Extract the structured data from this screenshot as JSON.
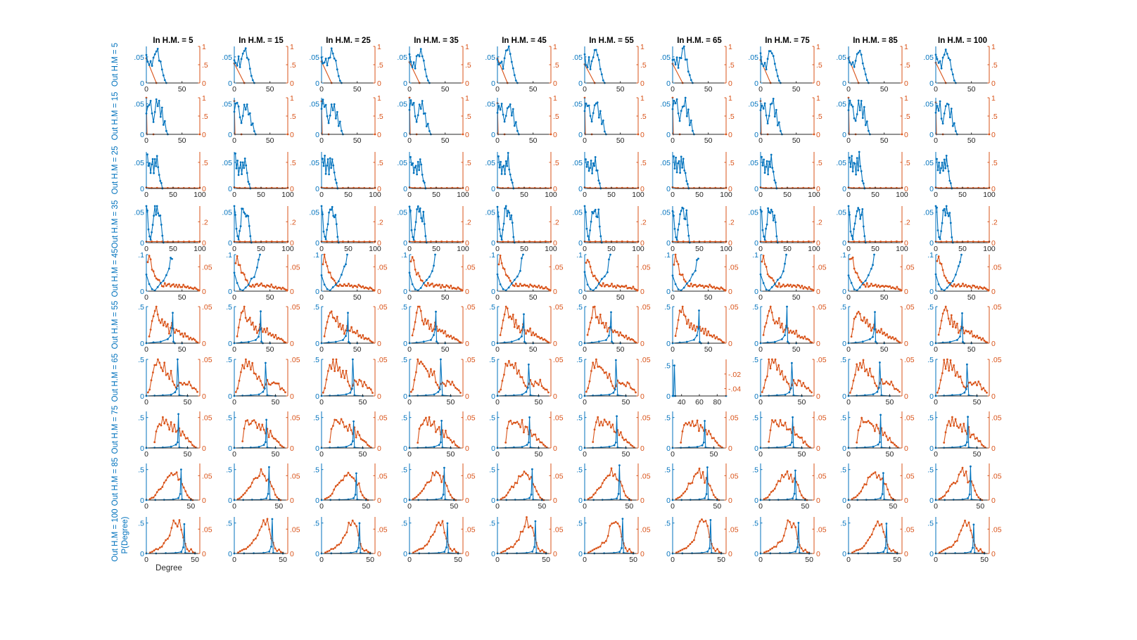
{
  "figure": {
    "col_titles": [
      "In H.M. = 5",
      "In H.M. = 15",
      "In H.M. = 25",
      "In H.M. = 35",
      "In H.M. = 45",
      "In H.M. = 55",
      "In H.M. = 65",
      "In H.M. = 75",
      "In H.M. = 85",
      "In H.M. = 100"
    ],
    "row_labels": [
      "Out H.M = 5",
      "Out H.M = 15",
      "Out H.M = 25",
      "Out H.M = 35",
      "Out H.M = 45",
      "Out H.M = 55",
      "Out H.M = 65",
      "Out H.M = 75",
      "Out H.M = 85",
      "Out H.M = 100"
    ],
    "ylabel": "P(Degree)",
    "xlabel": "Degree",
    "colors": {
      "left_series": "#0072bd",
      "right_series": "#d95319",
      "axis": "#262626"
    }
  },
  "chart_data": {
    "type": "line",
    "layout_note": "10 x 10 grid of small multiples with dual y-axes; left axis (blue) and right axis (orange)",
    "rows": [
      {
        "label": "Out H.M = 5",
        "xticks": [
          0,
          50
        ],
        "xlim": [
          0,
          75
        ],
        "left_yticks": [
          0,
          0.05
        ],
        "left_ylim": [
          0,
          0.07
        ],
        "right_yticks": [
          0,
          0.5,
          1
        ],
        "right_ylim": [
          0,
          1
        ],
        "left_x": [
          0,
          2,
          4,
          6,
          8,
          10,
          12,
          14,
          16,
          18,
          20,
          22,
          24,
          26,
          28
        ],
        "left_y": [
          0.05,
          0.04,
          0.035,
          0.045,
          0.03,
          0.045,
          0.055,
          0.06,
          0.065,
          0.05,
          0.04,
          0.025,
          0.015,
          0.005,
          0
        ],
        "right_x": [
          0,
          14
        ],
        "right_y": [
          0.6,
          0
        ]
      },
      {
        "label": "Out H.M = 15",
        "xticks": [
          0,
          50
        ],
        "xlim": [
          0,
          75
        ],
        "left_yticks": [
          0,
          0.05
        ],
        "left_ylim": [
          0,
          0.06
        ],
        "right_yticks": [
          0,
          0.5,
          1
        ],
        "right_ylim": [
          0,
          1
        ],
        "left_x": [
          0,
          2,
          4,
          6,
          8,
          10,
          12,
          14,
          16,
          18,
          20,
          22,
          24,
          26,
          28,
          30
        ],
        "left_y": [
          0.04,
          0.05,
          0.045,
          0.05,
          0.03,
          0.02,
          0.035,
          0.05,
          0.045,
          0.055,
          0.03,
          0.04,
          0.015,
          0.02,
          0.005,
          0
        ],
        "right_x": [
          0,
          1,
          10,
          75
        ],
        "right_y": [
          1,
          0,
          0,
          0
        ]
      },
      {
        "label": "Out H.M = 25",
        "xticks": [
          0,
          50,
          100
        ],
        "xlim": [
          0,
          100
        ],
        "left_yticks": [
          0,
          0.05
        ],
        "left_ylim": [
          0,
          0.07
        ],
        "right_yticks": [
          0,
          0.5
        ],
        "right_ylim": [
          0,
          0.7
        ],
        "left_x": [
          2,
          4,
          6,
          8,
          10,
          12,
          14,
          16,
          18,
          20,
          22,
          24,
          26,
          28,
          30
        ],
        "left_y": [
          0.06,
          0.04,
          0.055,
          0.03,
          0.045,
          0.05,
          0.03,
          0.055,
          0.04,
          0.065,
          0.04,
          0.03,
          0.015,
          0.01,
          0
        ],
        "right_x": [
          0,
          10,
          20,
          30,
          40,
          50,
          60,
          70,
          80,
          90,
          100
        ],
        "right_y": [
          0.02,
          0.01,
          0.01,
          0.01,
          0.01,
          0.01,
          0.01,
          0.01,
          0.01,
          0.01,
          0.01
        ]
      },
      {
        "label": "Out H.M = 35",
        "xticks": [
          0,
          50,
          100
        ],
        "xlim": [
          0,
          100
        ],
        "left_yticks": [
          0,
          0.05
        ],
        "left_ylim": [
          0,
          0.06
        ],
        "right_yticks": [
          0,
          0.2
        ],
        "right_ylim": [
          0,
          0.35
        ],
        "left_x": [
          0,
          2,
          4,
          6,
          8,
          10,
          12,
          14,
          16,
          18,
          20,
          22,
          24,
          26,
          28,
          30,
          32
        ],
        "left_y": [
          0.06,
          0.05,
          0.02,
          0.01,
          0.005,
          0.02,
          0.03,
          0.05,
          0.055,
          0.05,
          0.055,
          0.045,
          0.04,
          0.05,
          0.03,
          0.01,
          0
        ],
        "right_x": [
          0,
          10,
          20,
          30,
          40,
          50,
          60,
          70,
          80,
          90,
          100
        ],
        "right_y": [
          0.01,
          0.01,
          0.01,
          0.01,
          0.01,
          0.01,
          0.01,
          0.01,
          0.01,
          0.01,
          0.01
        ]
      },
      {
        "label": "Out H.M = 45",
        "xticks": [
          0,
          50
        ],
        "xlim": [
          0,
          75
        ],
        "left_yticks": [
          0,
          0.1
        ],
        "left_ylim": [
          0,
          0.1
        ],
        "right_yticks": [
          0,
          0.05
        ],
        "right_ylim": [
          0,
          0.075
        ],
        "left_x": [
          0,
          4,
          8,
          12,
          16,
          20,
          24,
          28,
          32,
          34,
          36
        ],
        "left_y": [
          0.05,
          0.02,
          0.005,
          0.002,
          0.01,
          0.02,
          0.03,
          0.04,
          0.06,
          0.08,
          0.1
        ],
        "right_x": [
          2,
          4,
          6,
          8,
          10,
          12,
          14,
          16,
          18,
          20,
          22,
          24,
          26,
          28,
          30,
          32,
          34,
          36,
          38,
          40,
          42,
          44,
          46,
          48,
          50,
          52,
          54,
          56,
          58,
          60,
          62,
          64,
          66,
          68,
          70,
          72,
          74
        ],
        "right_y": [
          0.06,
          0.07,
          0.06,
          0.05,
          0.04,
          0.035,
          0.03,
          0.025,
          0.02,
          0.015,
          0.012,
          0.01,
          0.015,
          0.01,
          0.012,
          0.015,
          0.01,
          0.012,
          0.015,
          0.01,
          0.012,
          0.008,
          0.012,
          0.01,
          0.008,
          0.012,
          0.01,
          0.008,
          0.01,
          0.006,
          0.008,
          0.006,
          0.005,
          0.008,
          0.005,
          0.003,
          0.002
        ]
      },
      {
        "label": "Out H.M = 55",
        "xticks": [
          0,
          50
        ],
        "xlim": [
          0,
          75
        ],
        "left_yticks": [
          0,
          0.5
        ],
        "left_ylim": [
          0,
          0.5
        ],
        "right_yticks": [
          0,
          0.05
        ],
        "right_ylim": [
          0,
          0.05
        ],
        "left_x": [
          0,
          10,
          20,
          30,
          34,
          36,
          37,
          38,
          40,
          50
        ],
        "left_y": [
          0,
          0.01,
          0.02,
          0.05,
          0.1,
          0.2,
          0.45,
          0.02,
          0,
          0
        ],
        "right_x": [
          4,
          6,
          8,
          10,
          12,
          14,
          16,
          18,
          20,
          22,
          24,
          26,
          28,
          30,
          32,
          34,
          36,
          38,
          40,
          42,
          44,
          46,
          48,
          50,
          52,
          54,
          56,
          58,
          60,
          62,
          64,
          66,
          68,
          70,
          72
        ],
        "right_y": [
          0.01,
          0.02,
          0.03,
          0.04,
          0.045,
          0.05,
          0.04,
          0.035,
          0.03,
          0.035,
          0.025,
          0.03,
          0.02,
          0.025,
          0.015,
          0.02,
          0.025,
          0.02,
          0.015,
          0.02,
          0.015,
          0.018,
          0.012,
          0.015,
          0.01,
          0.012,
          0.008,
          0.01,
          0.006,
          0.008,
          0.005,
          0.006,
          0.004,
          0.002,
          0.001
        ]
      },
      {
        "label": "Out H.M = 65",
        "xticks": [
          0,
          50
        ],
        "xlim": [
          0,
          65
        ],
        "left_yticks": [
          0,
          0.5
        ],
        "left_ylim": [
          0,
          0.5
        ],
        "right_yticks": [
          0,
          0.05
        ],
        "right_ylim": [
          0,
          0.05
        ],
        "left_x": [
          0,
          10,
          20,
          30,
          35,
          37,
          38,
          40,
          50
        ],
        "left_y": [
          0,
          0.005,
          0.01,
          0.02,
          0.05,
          0.1,
          0.5,
          0.01,
          0
        ],
        "right_x": [
          2,
          4,
          6,
          8,
          10,
          12,
          14,
          16,
          18,
          20,
          22,
          24,
          26,
          28,
          30,
          32,
          34,
          36,
          38,
          40,
          42,
          44,
          46,
          48,
          50,
          52,
          54,
          56,
          58,
          60,
          62
        ],
        "right_y": [
          0.005,
          0.01,
          0.02,
          0.03,
          0.045,
          0.04,
          0.05,
          0.04,
          0.045,
          0.035,
          0.04,
          0.03,
          0.035,
          0.025,
          0.03,
          0.02,
          0.015,
          0.01,
          0.015,
          0.02,
          0.018,
          0.015,
          0.02,
          0.018,
          0.015,
          0.02,
          0.015,
          0.01,
          0.01,
          0.008,
          0.005
        ]
      },
      {
        "label": "Out H.M = 75",
        "xticks": [
          0,
          50
        ],
        "xlim": [
          0,
          65
        ],
        "left_yticks": [
          0,
          0.5
        ],
        "left_ylim": [
          0,
          0.6
        ],
        "right_yticks": [
          0,
          0.05
        ],
        "right_ylim": [
          0,
          0.06
        ],
        "left_x": [
          0,
          10,
          20,
          30,
          36,
          38,
          39,
          40,
          50
        ],
        "left_y": [
          0,
          0.005,
          0.01,
          0.02,
          0.05,
          0.1,
          0.5,
          0.01,
          0
        ],
        "right_x": [
          10,
          12,
          14,
          16,
          18,
          20,
          22,
          24,
          26,
          28,
          30,
          32,
          34,
          36,
          38,
          40,
          42,
          44,
          46,
          48,
          50,
          52,
          54,
          56,
          58,
          60
        ],
        "right_y": [
          0.01,
          0.03,
          0.04,
          0.045,
          0.04,
          0.045,
          0.04,
          0.045,
          0.04,
          0.035,
          0.04,
          0.03,
          0.035,
          0.03,
          0.025,
          0.03,
          0.02,
          0.025,
          0.02,
          0.015,
          0.015,
          0.01,
          0.01,
          0.005,
          0.003,
          0.001
        ]
      },
      {
        "label": "Out H.M = 85",
        "xticks": [
          0,
          50
        ],
        "xlim": [
          0,
          60
        ],
        "left_yticks": [
          0,
          0.5
        ],
        "left_ylim": [
          0,
          0.6
        ],
        "right_yticks": [
          0,
          0.05
        ],
        "right_ylim": [
          0,
          0.075
        ],
        "left_x": [
          0,
          10,
          20,
          30,
          36,
          38,
          39,
          40,
          50
        ],
        "left_y": [
          0,
          0.002,
          0.005,
          0.01,
          0.03,
          0.1,
          0.5,
          0.01,
          0
        ],
        "right_x": [
          4,
          6,
          8,
          10,
          12,
          14,
          16,
          18,
          20,
          22,
          24,
          26,
          28,
          30,
          32,
          34,
          36,
          38,
          40,
          42,
          44,
          46,
          48,
          50,
          52
        ],
        "right_y": [
          0.002,
          0.004,
          0.006,
          0.01,
          0.015,
          0.02,
          0.025,
          0.03,
          0.035,
          0.04,
          0.045,
          0.05,
          0.055,
          0.06,
          0.05,
          0.055,
          0.04,
          0.045,
          0.035,
          0.03,
          0.02,
          0.01,
          0.005,
          0.002,
          0
        ]
      },
      {
        "label": "Out H.M = 100",
        "xticks": [
          0,
          50
        ],
        "xlim": [
          0,
          55
        ],
        "left_yticks": [
          0,
          0.5
        ],
        "left_ylim": [
          0,
          0.6
        ],
        "right_yticks": [
          0,
          0.05
        ],
        "right_ylim": [
          0,
          0.075
        ],
        "left_x": [
          0,
          10,
          20,
          30,
          36,
          38,
          39,
          40,
          50
        ],
        "left_y": [
          0,
          0.002,
          0.005,
          0.01,
          0.03,
          0.1,
          0.5,
          0.01,
          0
        ],
        "right_x": [
          4,
          6,
          8,
          10,
          12,
          14,
          16,
          18,
          20,
          22,
          24,
          26,
          28,
          30,
          32,
          34,
          36,
          38,
          40,
          42,
          44,
          46,
          48,
          50
        ],
        "right_y": [
          0.002,
          0.004,
          0.006,
          0.008,
          0.01,
          0.012,
          0.015,
          0.02,
          0.025,
          0.03,
          0.04,
          0.05,
          0.06,
          0.065,
          0.06,
          0.065,
          0.05,
          0.035,
          0.02,
          0.01,
          0.005,
          0.008,
          0.003,
          0.001
        ]
      }
    ],
    "column_variation": [
      0,
      1,
      2,
      3,
      4,
      5,
      6,
      7,
      8,
      9
    ],
    "exception": {
      "row": 6,
      "col": 6,
      "xticks": [
        40,
        60,
        80
      ],
      "xlim": [
        30,
        90
      ],
      "left_yticks": [
        0,
        0.5
      ],
      "left_ylim": [
        0,
        0.6
      ],
      "right_yticks": [
        -0.02,
        -0.04
      ],
      "right_ylim": [
        -0.05,
        0
      ],
      "left_x": [
        30,
        31,
        32,
        33,
        90
      ],
      "left_y": [
        0,
        0,
        0.5,
        0,
        0
      ],
      "right_x": [],
      "right_y": []
    }
  }
}
